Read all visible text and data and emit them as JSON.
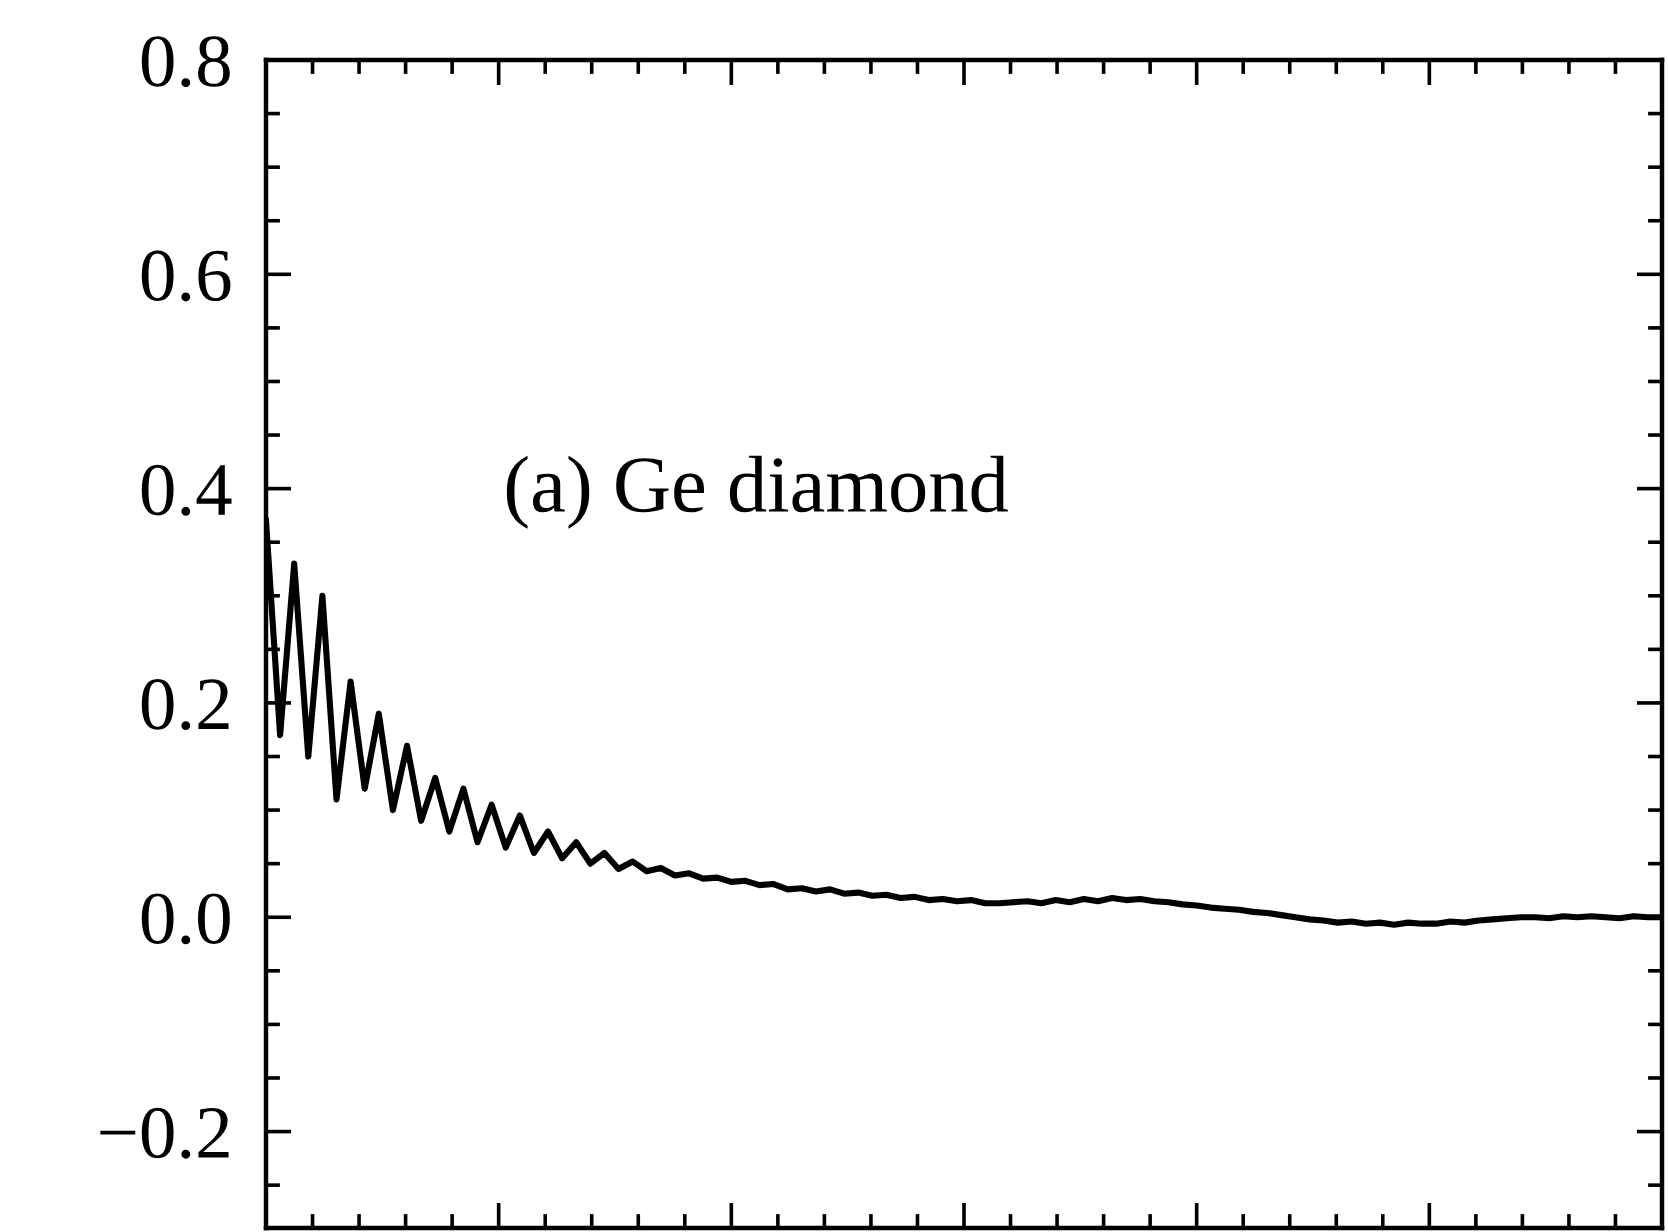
{
  "chart_data": {
    "type": "line",
    "annotations": [
      "(a) Ge diamond"
    ],
    "categories": [
      null,
      null,
      null,
      null,
      null,
      null,
      null,
      null,
      null,
      null,
      null,
      null,
      null,
      null,
      null,
      null,
      null,
      null,
      null,
      null,
      null,
      null,
      null,
      null,
      null,
      null,
      null,
      null,
      null,
      null,
      null,
      null,
      null,
      null,
      null,
      null,
      null,
      null,
      null,
      null,
      null,
      null,
      null,
      null,
      null,
      null,
      null,
      null,
      null,
      null,
      null,
      null,
      null,
      null,
      null,
      null,
      null,
      null,
      null,
      null,
      null,
      null,
      null,
      null,
      null,
      null,
      null,
      null,
      null,
      null,
      null,
      null,
      null,
      null,
      null,
      null,
      null,
      null,
      null,
      null,
      null,
      null,
      null,
      null,
      null,
      null,
      null,
      null,
      null,
      null,
      null,
      null,
      null,
      null,
      null,
      null,
      null,
      null,
      null,
      null
    ],
    "series": [
      {
        "color": "#000000",
        "values": [
          0.37,
          0.17,
          0.33,
          0.15,
          0.3,
          0.11,
          0.22,
          0.12,
          0.19,
          0.1,
          0.16,
          0.09,
          0.13,
          0.08,
          0.12,
          0.07,
          0.105,
          0.065,
          0.095,
          0.06,
          0.08,
          0.055,
          0.07,
          0.05,
          0.06,
          0.045,
          0.052,
          0.043,
          0.046,
          0.039,
          0.041,
          0.036,
          0.037,
          0.033,
          0.034,
          0.03,
          0.031,
          0.026,
          0.027,
          0.024,
          0.026,
          0.022,
          0.023,
          0.02,
          0.021,
          0.018,
          0.019,
          0.016,
          0.017,
          0.015,
          0.016,
          0.013,
          0.013,
          0.014,
          0.015,
          0.013,
          0.016,
          0.014,
          0.017,
          0.015,
          0.018,
          0.016,
          0.017,
          0.015,
          0.014,
          0.012,
          0.011,
          0.009,
          0.008,
          0.007,
          0.005,
          0.004,
          0.002,
          0.0,
          -0.002,
          -0.003,
          -0.005,
          -0.004,
          -0.006,
          -0.005,
          -0.007,
          -0.005,
          -0.006,
          -0.006,
          -0.004,
          -0.005,
          -0.003,
          -0.002,
          -0.001,
          0.0,
          0.0,
          -0.001,
          0.001,
          0.0,
          0.001,
          0.0,
          -0.001,
          0.001,
          0.0,
          0.0
        ]
      }
    ],
    "ylim": [
      -0.29,
      0.8
    ],
    "yticks": [
      {
        "value": -0.2,
        "label": "−0.2"
      },
      {
        "value": 0.0,
        "label": "0.0"
      },
      {
        "value": 0.2,
        "label": "0.2"
      },
      {
        "value": 0.4,
        "label": "0.4"
      },
      {
        "value": 0.6,
        "label": "0.6"
      },
      {
        "value": 0.8,
        "label": "0.8"
      }
    ],
    "tick_labels": "y",
    "grid": false,
    "legend": false,
    "marker": "none",
    "line_style": "solid"
  }
}
